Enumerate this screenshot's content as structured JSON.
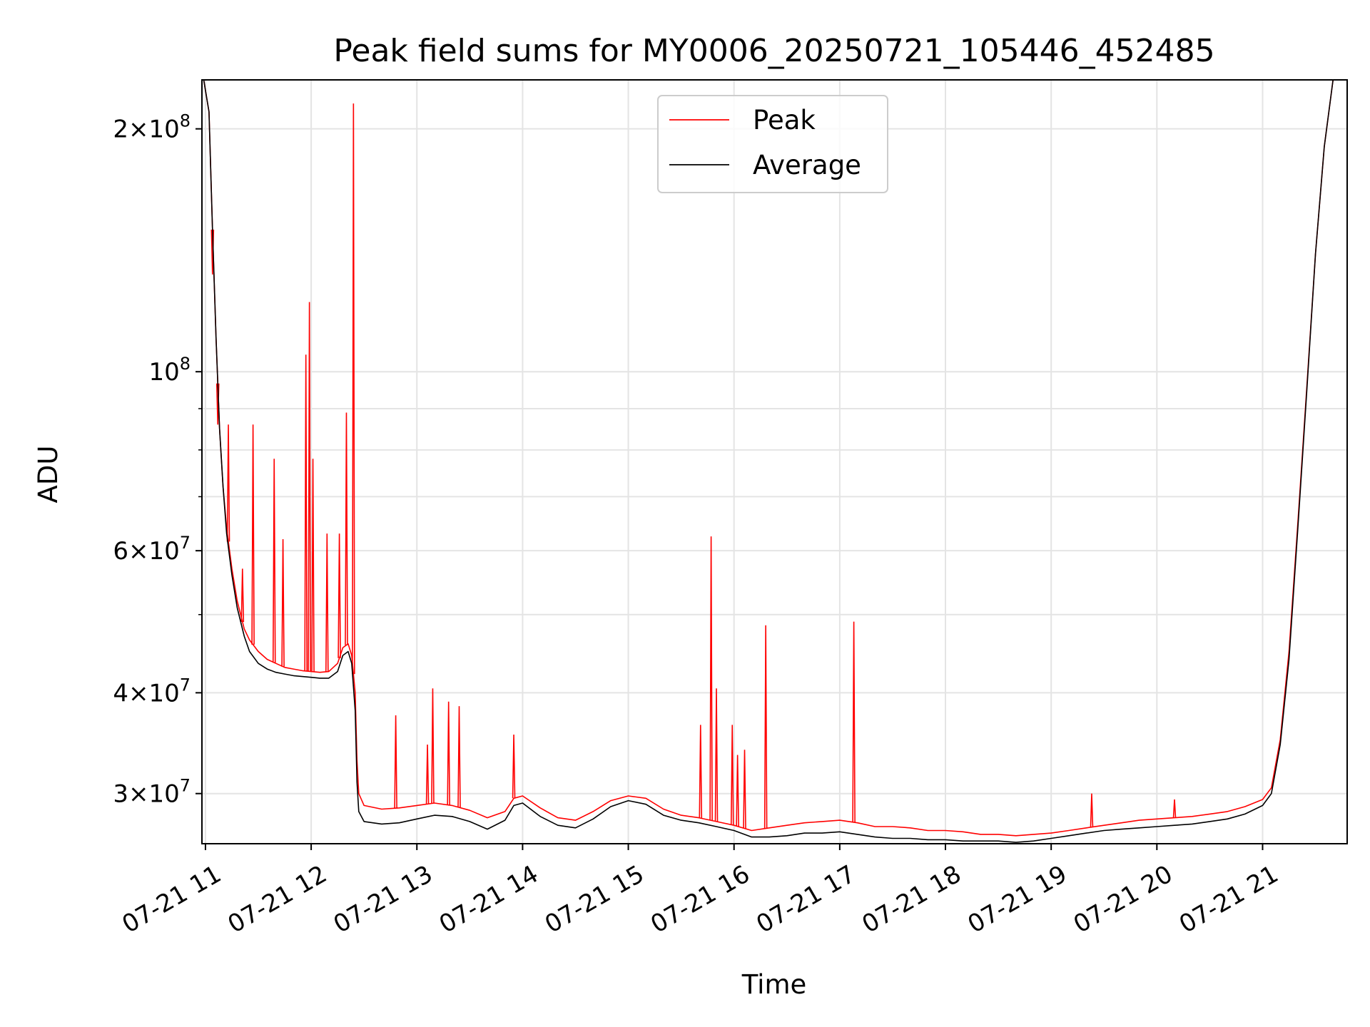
{
  "chart_data": {
    "type": "line",
    "title": "Peak field sums for MY0006_20250721_105446_452485",
    "xlabel": "Time",
    "ylabel": "ADU",
    "yscale": "log",
    "ylim": [
      26000000,
      230000000
    ],
    "xlim": [
      "2025-07-21 10:58",
      "2025-07-21 21:48"
    ],
    "grid": true,
    "legend": {
      "placement": "upper center",
      "entries": [
        "Peak",
        "Average"
      ]
    },
    "x_ticks": [
      {
        "value": "2025-07-21 11:00",
        "label": "07-21 11"
      },
      {
        "value": "2025-07-21 12:00",
        "label": "07-21 12"
      },
      {
        "value": "2025-07-21 13:00",
        "label": "07-21 13"
      },
      {
        "value": "2025-07-21 14:00",
        "label": "07-21 14"
      },
      {
        "value": "2025-07-21 15:00",
        "label": "07-21 15"
      },
      {
        "value": "2025-07-21 16:00",
        "label": "07-21 16"
      },
      {
        "value": "2025-07-21 17:00",
        "label": "07-21 17"
      },
      {
        "value": "2025-07-21 18:00",
        "label": "07-21 18"
      },
      {
        "value": "2025-07-21 19:00",
        "label": "07-21 19"
      },
      {
        "value": "2025-07-21 20:00",
        "label": "07-21 20"
      },
      {
        "value": "2025-07-21 21:00",
        "label": "07-21 21"
      }
    ],
    "y_ticks": [
      {
        "value": 30000000,
        "mant": "3",
        "exp": "7"
      },
      {
        "value": 40000000,
        "mant": "4",
        "exp": "7"
      },
      {
        "value": 60000000,
        "mant": "6",
        "exp": "7"
      },
      {
        "value": 100000000,
        "mant": "",
        "exp": "8"
      },
      {
        "value": 200000000,
        "mant": "2",
        "exp": "8"
      }
    ],
    "y_minor_ticks": [
      50000000,
      70000000,
      80000000,
      90000000
    ],
    "series": [
      {
        "name": "Peak",
        "color": "#ff0000",
        "x": [
          "2025-07-21 10:59",
          "2025-07-21 11:02",
          "2025-07-21 11:04",
          "2025-07-21 11:06",
          "2025-07-21 11:08",
          "2025-07-21 11:10",
          "2025-07-21 11:12",
          "2025-07-21 11:15",
          "2025-07-21 11:18",
          "2025-07-21 11:22",
          "2025-07-21 11:25",
          "2025-07-21 11:30",
          "2025-07-21 11:35",
          "2025-07-21 11:40",
          "2025-07-21 11:45",
          "2025-07-21 11:50",
          "2025-07-21 11:55",
          "2025-07-21 12:00",
          "2025-07-21 12:05",
          "2025-07-21 12:10",
          "2025-07-21 12:15",
          "2025-07-21 12:18",
          "2025-07-21 12:21",
          "2025-07-21 12:23",
          "2025-07-21 12:25",
          "2025-07-21 12:26",
          "2025-07-21 12:27",
          "2025-07-21 12:30",
          "2025-07-21 12:40",
          "2025-07-21 12:50",
          "2025-07-21 13:00",
          "2025-07-21 13:10",
          "2025-07-21 13:20",
          "2025-07-21 13:30",
          "2025-07-21 13:40",
          "2025-07-21 13:50",
          "2025-07-21 13:55",
          "2025-07-21 14:00",
          "2025-07-21 14:10",
          "2025-07-21 14:20",
          "2025-07-21 14:30",
          "2025-07-21 14:40",
          "2025-07-21 14:50",
          "2025-07-21 15:00",
          "2025-07-21 15:10",
          "2025-07-21 15:20",
          "2025-07-21 15:30",
          "2025-07-21 15:40",
          "2025-07-21 15:50",
          "2025-07-21 16:00",
          "2025-07-21 16:10",
          "2025-07-21 16:20",
          "2025-07-21 16:30",
          "2025-07-21 16:40",
          "2025-07-21 16:50",
          "2025-07-21 17:00",
          "2025-07-21 17:10",
          "2025-07-21 17:20",
          "2025-07-21 17:30",
          "2025-07-21 17:40",
          "2025-07-21 17:50",
          "2025-07-21 18:00",
          "2025-07-21 18:10",
          "2025-07-21 18:20",
          "2025-07-21 18:30",
          "2025-07-21 18:40",
          "2025-07-21 18:50",
          "2025-07-21 19:00",
          "2025-07-21 19:10",
          "2025-07-21 19:20",
          "2025-07-21 19:30",
          "2025-07-21 19:40",
          "2025-07-21 19:50",
          "2025-07-21 20:00",
          "2025-07-21 20:10",
          "2025-07-21 20:20",
          "2025-07-21 20:30",
          "2025-07-21 20:40",
          "2025-07-21 20:50",
          "2025-07-21 21:00",
          "2025-07-21 21:05",
          "2025-07-21 21:10",
          "2025-07-21 21:15",
          "2025-07-21 21:20",
          "2025-07-21 21:25",
          "2025-07-21 21:30",
          "2025-07-21 21:35",
          "2025-07-21 21:40",
          "2025-07-21 21:42"
        ],
        "y": [
          230000000,
          210000000,
          150000000,
          110000000,
          85000000,
          72000000,
          64000000,
          57000000,
          52000000,
          48000000,
          46500000,
          45000000,
          44000000,
          43500000,
          43000000,
          42800000,
          42600000,
          42500000,
          42400000,
          42500000,
          43500000,
          45500000,
          46000000,
          44500000,
          40000000,
          33000000,
          30000000,
          29000000,
          28700000,
          28800000,
          29000000,
          29200000,
          29000000,
          28600000,
          28000000,
          28500000,
          29600000,
          29800000,
          28800000,
          28000000,
          27800000,
          28500000,
          29400000,
          29800000,
          29600000,
          28700000,
          28200000,
          28000000,
          27700000,
          27400000,
          27000000,
          27200000,
          27400000,
          27600000,
          27700000,
          27800000,
          27600000,
          27300000,
          27300000,
          27200000,
          27000000,
          27000000,
          26900000,
          26700000,
          26700000,
          26600000,
          26700000,
          26800000,
          27000000,
          27200000,
          27400000,
          27600000,
          27800000,
          27900000,
          28000000,
          28100000,
          28300000,
          28500000,
          28900000,
          29500000,
          30500000,
          35000000,
          45000000,
          65000000,
          95000000,
          140000000,
          190000000,
          230000000,
          230000000
        ]
      },
      {
        "name": "Average",
        "color": "#000000",
        "x": [
          "2025-07-21 10:59",
          "2025-07-21 11:02",
          "2025-07-21 11:04",
          "2025-07-21 11:06",
          "2025-07-21 11:08",
          "2025-07-21 11:10",
          "2025-07-21 11:12",
          "2025-07-21 11:15",
          "2025-07-21 11:18",
          "2025-07-21 11:22",
          "2025-07-21 11:25",
          "2025-07-21 11:30",
          "2025-07-21 11:35",
          "2025-07-21 11:40",
          "2025-07-21 11:45",
          "2025-07-21 11:50",
          "2025-07-21 11:55",
          "2025-07-21 12:00",
          "2025-07-21 12:05",
          "2025-07-21 12:10",
          "2025-07-21 12:15",
          "2025-07-21 12:18",
          "2025-07-21 12:21",
          "2025-07-21 12:23",
          "2025-07-21 12:25",
          "2025-07-21 12:26",
          "2025-07-21 12:27",
          "2025-07-21 12:30",
          "2025-07-21 12:40",
          "2025-07-21 12:50",
          "2025-07-21 13:00",
          "2025-07-21 13:10",
          "2025-07-21 13:20",
          "2025-07-21 13:30",
          "2025-07-21 13:40",
          "2025-07-21 13:50",
          "2025-07-21 13:55",
          "2025-07-21 14:00",
          "2025-07-21 14:10",
          "2025-07-21 14:20",
          "2025-07-21 14:30",
          "2025-07-21 14:40",
          "2025-07-21 14:50",
          "2025-07-21 15:00",
          "2025-07-21 15:10",
          "2025-07-21 15:20",
          "2025-07-21 15:30",
          "2025-07-21 15:40",
          "2025-07-21 15:50",
          "2025-07-21 16:00",
          "2025-07-21 16:10",
          "2025-07-21 16:20",
          "2025-07-21 16:30",
          "2025-07-21 16:40",
          "2025-07-21 16:50",
          "2025-07-21 17:00",
          "2025-07-21 17:10",
          "2025-07-21 17:20",
          "2025-07-21 17:30",
          "2025-07-21 17:40",
          "2025-07-21 17:50",
          "2025-07-21 18:00",
          "2025-07-21 18:10",
          "2025-07-21 18:20",
          "2025-07-21 18:30",
          "2025-07-21 18:40",
          "2025-07-21 18:50",
          "2025-07-21 19:00",
          "2025-07-21 19:10",
          "2025-07-21 19:20",
          "2025-07-21 19:30",
          "2025-07-21 19:40",
          "2025-07-21 19:50",
          "2025-07-21 20:00",
          "2025-07-21 20:10",
          "2025-07-21 20:20",
          "2025-07-21 20:30",
          "2025-07-21 20:40",
          "2025-07-21 20:50",
          "2025-07-21 21:00",
          "2025-07-21 21:05",
          "2025-07-21 21:10",
          "2025-07-21 21:15",
          "2025-07-21 21:20",
          "2025-07-21 21:25",
          "2025-07-21 21:30",
          "2025-07-21 21:35",
          "2025-07-21 21:40",
          "2025-07-21 21:42"
        ],
        "y": [
          230000000,
          210000000,
          150000000,
          110000000,
          85000000,
          72000000,
          63000000,
          56000000,
          51000000,
          47000000,
          45000000,
          43500000,
          42800000,
          42400000,
          42200000,
          42000000,
          41900000,
          41800000,
          41700000,
          41700000,
          42500000,
          44500000,
          45000000,
          43500000,
          38000000,
          31000000,
          28500000,
          27700000,
          27500000,
          27600000,
          27900000,
          28200000,
          28100000,
          27700000,
          27100000,
          27800000,
          29000000,
          29200000,
          28100000,
          27400000,
          27200000,
          27900000,
          28900000,
          29400000,
          29100000,
          28200000,
          27800000,
          27600000,
          27300000,
          27000000,
          26500000,
          26500000,
          26600000,
          26800000,
          26800000,
          26900000,
          26700000,
          26500000,
          26400000,
          26400000,
          26300000,
          26300000,
          26200000,
          26200000,
          26200000,
          26100000,
          26200000,
          26400000,
          26600000,
          26800000,
          27000000,
          27100000,
          27200000,
          27300000,
          27400000,
          27500000,
          27700000,
          27900000,
          28300000,
          29000000,
          30000000,
          34500000,
          44000000,
          64000000,
          94000000,
          140000000,
          190000000,
          230000000,
          230000000
        ]
      }
    ],
    "spikes": [
      {
        "x": "2025-07-21 11:04",
        "y": 132000000
      },
      {
        "x": "2025-07-21 11:07",
        "y": 86000000
      },
      {
        "x": "2025-07-21 11:13",
        "y": 86000000
      },
      {
        "x": "2025-07-21 11:21",
        "y": 57000000
      },
      {
        "x": "2025-07-21 11:27",
        "y": 86000000
      },
      {
        "x": "2025-07-21 11:39",
        "y": 78000000
      },
      {
        "x": "2025-07-21 11:44",
        "y": 62000000
      },
      {
        "x": "2025-07-21 11:57",
        "y": 105000000
      },
      {
        "x": "2025-07-21 11:59",
        "y": 122000000
      },
      {
        "x": "2025-07-21 12:01",
        "y": 78000000
      },
      {
        "x": "2025-07-21 12:09",
        "y": 63000000
      },
      {
        "x": "2025-07-21 12:16",
        "y": 63000000
      },
      {
        "x": "2025-07-21 12:20",
        "y": 89000000
      },
      {
        "x": "2025-07-21 12:24",
        "y": 215000000
      },
      {
        "x": "2025-07-21 12:48",
        "y": 37500000
      },
      {
        "x": "2025-07-21 13:06",
        "y": 34500000
      },
      {
        "x": "2025-07-21 13:09",
        "y": 40500000
      },
      {
        "x": "2025-07-21 13:18",
        "y": 39000000
      },
      {
        "x": "2025-07-21 13:24",
        "y": 38500000
      },
      {
        "x": "2025-07-21 13:55",
        "y": 35500000
      },
      {
        "x": "2025-07-21 15:41",
        "y": 36500000
      },
      {
        "x": "2025-07-21 15:47",
        "y": 62500000
      },
      {
        "x": "2025-07-21 15:50",
        "y": 40500000
      },
      {
        "x": "2025-07-21 15:59",
        "y": 36500000
      },
      {
        "x": "2025-07-21 16:02",
        "y": 33500000
      },
      {
        "x": "2025-07-21 16:06",
        "y": 34000000
      },
      {
        "x": "2025-07-21 16:18",
        "y": 48500000
      },
      {
        "x": "2025-07-21 17:08",
        "y": 49000000
      },
      {
        "x": "2025-07-21 19:23",
        "y": 30000000
      },
      {
        "x": "2025-07-21 20:10",
        "y": 29500000
      }
    ]
  }
}
